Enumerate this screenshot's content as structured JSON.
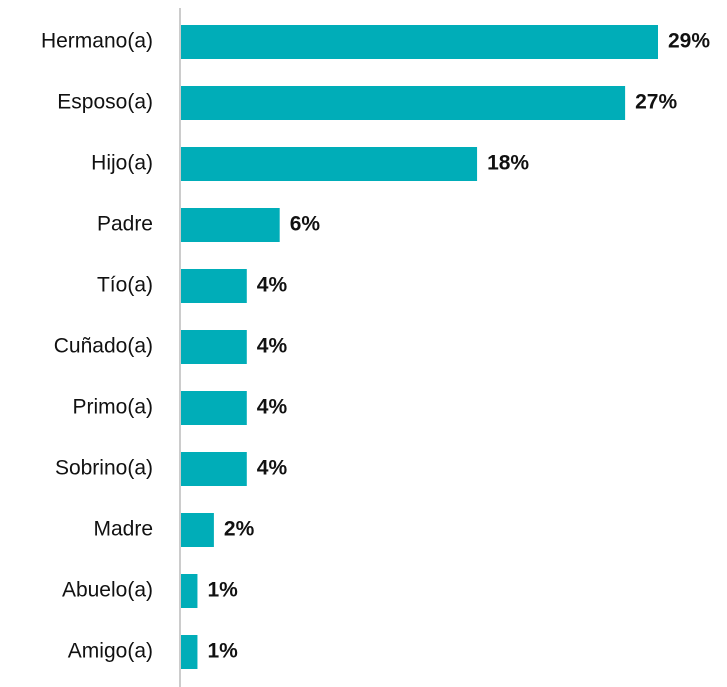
{
  "chart_data": {
    "type": "hbar",
    "categories": [
      "Hermano(a)",
      "Esposo(a)",
      "Hijo(a)",
      "Padre",
      "Tío(a)",
      "Cuñado(a)",
      "Primo(a)",
      "Sobrino(a)",
      "Madre",
      "Abuelo(a)",
      "Amigo(a)"
    ],
    "values": [
      29,
      27,
      18,
      6,
      4,
      4,
      4,
      4,
      2,
      1,
      1
    ],
    "value_labels": [
      "29%",
      "27%",
      "18%",
      "6%",
      "4%",
      "4%",
      "4%",
      "4%",
      "2%",
      "1%",
      "1%"
    ],
    "color": "#00adb8"
  }
}
